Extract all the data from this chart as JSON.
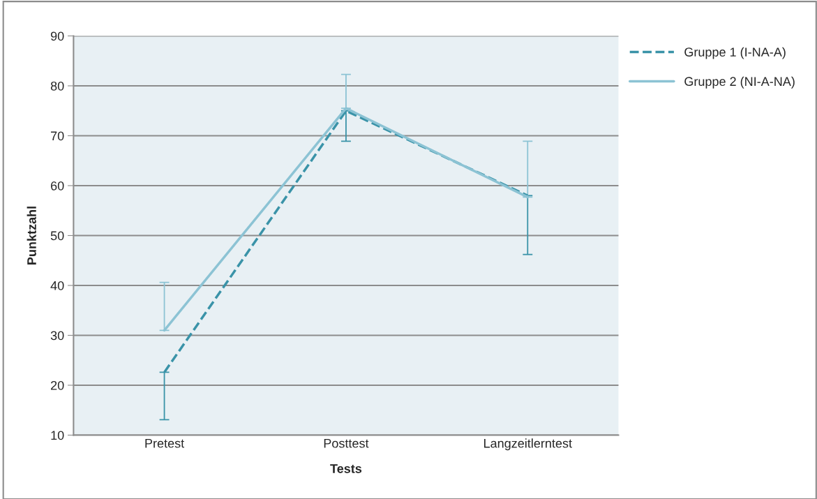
{
  "chart_data": {
    "type": "line",
    "xlabel": "Tests",
    "ylabel": "Punktzahl",
    "categories": [
      "Pretest",
      "Posttest",
      "Langzeitlerntest"
    ],
    "series": [
      {
        "name": "Gruppe 1 (I-NA-A)",
        "color": "#3a93a8",
        "line_style": "dashed",
        "values": [
          22.6,
          75,
          58
        ],
        "errors": [
          [
            13.1,
            22.6
          ],
          [
            68.9,
            75
          ],
          [
            46.2,
            58
          ]
        ]
      },
      {
        "name": "Gruppe 2 (NI-A-NA)",
        "color": "#8cc3d4",
        "line_style": "solid",
        "values": [
          31,
          75.5,
          57.7
        ],
        "errors": [
          [
            31,
            40.6
          ],
          [
            75.5,
            82.3
          ],
          [
            57.7,
            68.9
          ]
        ]
      }
    ],
    "ylim": [
      10,
      90
    ],
    "yticks": [
      10,
      20,
      30,
      40,
      50,
      60,
      70,
      80,
      90
    ],
    "grid": "y",
    "legend": "top right",
    "marker": "none"
  }
}
